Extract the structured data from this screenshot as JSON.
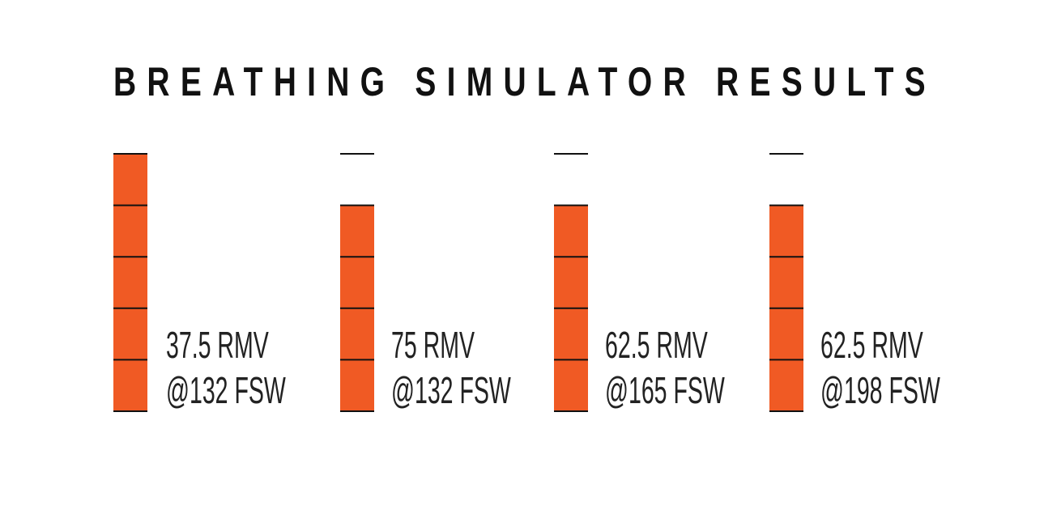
{
  "chart_data": {
    "type": "bar",
    "title": "BREATHING SIMULATOR RESULTS",
    "max_segments": 5,
    "categories": [
      "37.5 RMV @132 FSW",
      "75 RMV @132 FSW",
      "62.5 RMV @165 FSW",
      "62.5 RMV @198 FSW"
    ],
    "values": [
      5,
      4,
      4,
      4
    ],
    "labels": [
      {
        "line1": "37.5 RMV",
        "line2": "@132 FSW"
      },
      {
        "line1": "75 RMV",
        "line2": "@132 FSW"
      },
      {
        "line1": "62.5 RMV",
        "line2": "@165 FSW"
      },
      {
        "line1": "62.5 RMV",
        "line2": "@198 FSW"
      }
    ],
    "colors": {
      "bar": "#f05a24",
      "line": "#111111"
    }
  }
}
